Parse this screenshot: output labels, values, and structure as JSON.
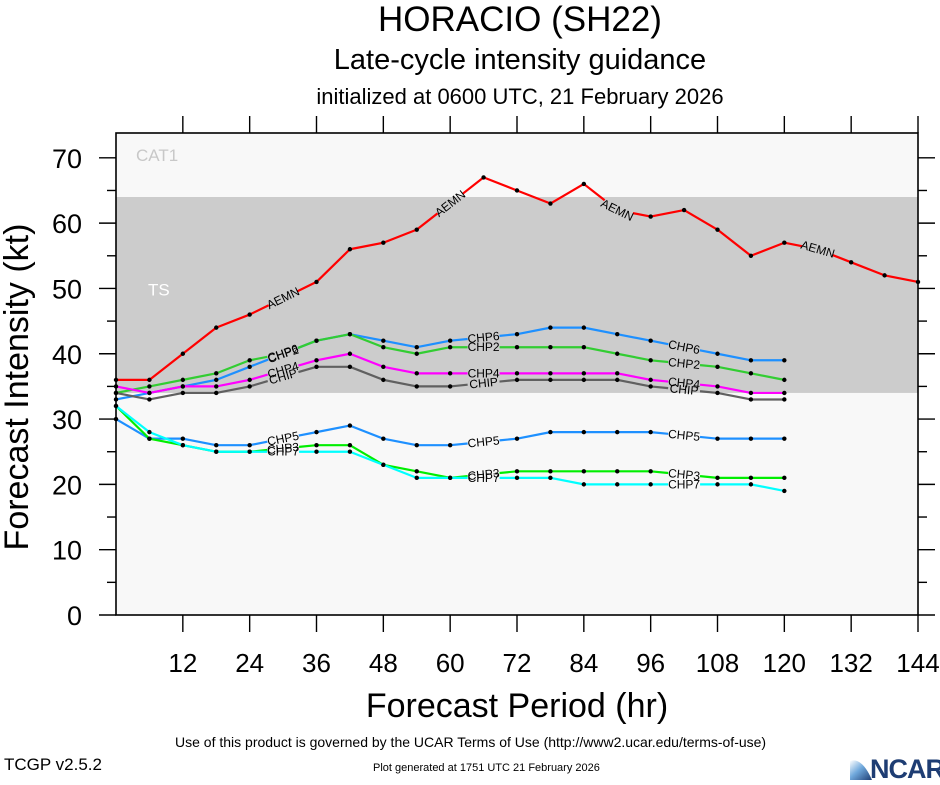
{
  "header": {
    "title": "HORACIO (SH22)",
    "subtitle": "Late-cycle intensity guidance",
    "initialized": "initialized at 0600 UTC, 21 February 2026"
  },
  "footer": {
    "version": "TCGP v2.5.2",
    "terms": "Use of this product is governed by the UCAR Terms of Use (http://www2.ucar.edu/terms-of-use)",
    "generated": "Plot generated at 1751 UTC   21 February 2026",
    "logo_text": "NCAR"
  },
  "chart_data": {
    "type": "line",
    "title": "Late-cycle intensity guidance",
    "xlabel": "Forecast Period (hr)",
    "ylabel": "Forecast Intensity (kt)",
    "xlim": [
      0,
      144
    ],
    "ylim": [
      0,
      73.8
    ],
    "x_ticks": [
      12,
      24,
      36,
      48,
      60,
      72,
      84,
      96,
      108,
      120,
      132,
      144
    ],
    "y_ticks": [
      0,
      10,
      20,
      30,
      40,
      50,
      60,
      70
    ],
    "y_minor_step": 5,
    "grid": false,
    "bands": [
      {
        "name": "TS",
        "from": 34,
        "to": 64,
        "color": "#cccccc",
        "label_color": "#ffffff"
      },
      {
        "name": "CAT1",
        "from": 64,
        "to": 73.8,
        "color": "#f8f8f8",
        "label_color": "#c8c8c8"
      }
    ],
    "background": "#f8f8f8",
    "x": [
      0,
      6,
      12,
      18,
      24,
      30,
      36,
      42,
      48,
      54,
      60,
      66,
      72,
      78,
      84,
      90,
      96,
      102,
      108,
      114,
      120,
      126,
      132,
      138,
      144
    ],
    "series": [
      {
        "name": "AEMN",
        "color": "#ff0000",
        "label_at": [
          30,
          60,
          90,
          126
        ],
        "values": [
          36,
          36,
          40,
          44,
          46,
          48.5,
          51,
          56,
          57,
          59,
          63,
          67,
          65,
          63,
          66,
          62,
          61,
          62,
          59,
          55,
          57,
          56,
          54,
          52,
          51
        ]
      },
      {
        "name": "CHP6",
        "color": "#1e90ff",
        "label_at": [
          30,
          66,
          102
        ],
        "values": [
          33,
          34,
          35,
          36,
          38,
          40,
          42,
          43,
          42,
          41,
          42,
          42.5,
          43,
          44,
          44,
          43,
          42,
          41,
          40,
          39,
          39,
          null,
          null,
          null,
          null
        ]
      },
      {
        "name": "CHP2",
        "color": "#32cd32",
        "label_at": [
          30,
          66,
          102
        ],
        "values": [
          34,
          35,
          36,
          37,
          39,
          40,
          42,
          43,
          41,
          40,
          41,
          41,
          41,
          41,
          41,
          40,
          39,
          38.5,
          38,
          37,
          36,
          null,
          null,
          null,
          null
        ]
      },
      {
        "name": "CHP4",
        "color": "#ff00ff",
        "label_at": [
          30,
          66,
          102
        ],
        "values": [
          35,
          34,
          35,
          35,
          36,
          37.5,
          39,
          40,
          38,
          37,
          37,
          37,
          37,
          37,
          37,
          37,
          36,
          35.5,
          35,
          34,
          34,
          null,
          null,
          null,
          null
        ]
      },
      {
        "name": "CHIP",
        "color": "#606060",
        "label_at": [
          30,
          66,
          102
        ],
        "values": [
          34,
          33,
          34,
          34,
          35,
          36.5,
          38,
          38,
          36,
          35,
          35,
          35.5,
          36,
          36,
          36,
          36,
          35,
          34.5,
          34,
          33,
          33,
          null,
          null,
          null,
          null
        ]
      },
      {
        "name": "CHP5",
        "color": "#1e90ff",
        "label_at": [
          30,
          66,
          102
        ],
        "values": [
          30,
          27,
          27,
          26,
          26,
          27,
          28,
          29,
          27,
          26,
          26,
          26.5,
          27,
          28,
          28,
          28,
          28,
          27.5,
          27,
          27,
          27,
          null,
          null,
          null,
          null
        ]
      },
      {
        "name": "CHP3",
        "color": "#00ee00",
        "label_at": [
          30,
          66,
          102
        ],
        "values": [
          32,
          27,
          26,
          25,
          25,
          25.5,
          26,
          26,
          23,
          22,
          21,
          21.5,
          22,
          22,
          22,
          22,
          22,
          21.5,
          21,
          21,
          21,
          null,
          null,
          null,
          null
        ]
      },
      {
        "name": "CHP7",
        "color": "#00ffff",
        "label_at": [
          30,
          66,
          102
        ],
        "values": [
          32,
          28,
          26,
          25,
          25,
          25,
          25,
          25,
          23,
          21,
          21,
          21,
          21,
          21,
          20,
          20,
          20,
          20,
          20,
          20,
          19,
          null,
          null,
          null,
          null
        ]
      }
    ]
  }
}
